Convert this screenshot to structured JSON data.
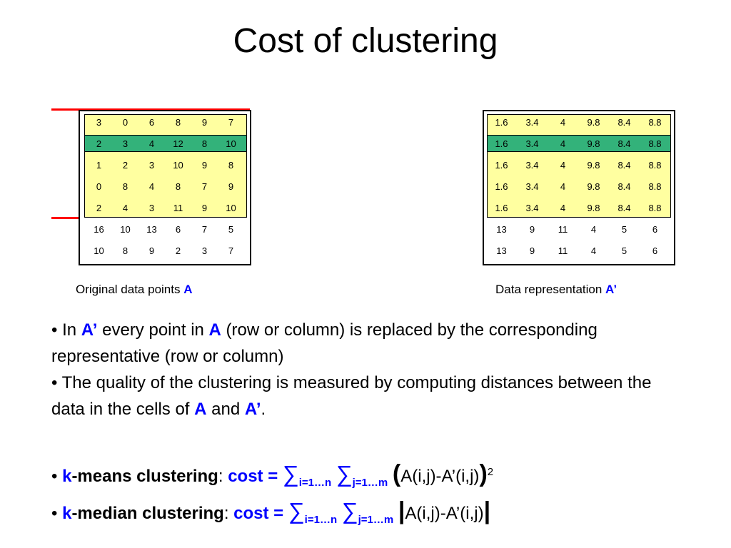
{
  "title": "Cost of clustering",
  "matrix_a": {
    "rows": [
      [
        "3",
        "0",
        "6",
        "8",
        "9",
        "7"
      ],
      [
        "2",
        "3",
        "4",
        "12",
        "8",
        "10"
      ],
      [
        "1",
        "2",
        "3",
        "10",
        "9",
        "8"
      ],
      [
        "0",
        "8",
        "4",
        "8",
        "7",
        "9"
      ],
      [
        "2",
        "4",
        "3",
        "11",
        "9",
        "10"
      ],
      [
        "16",
        "10",
        "13",
        "6",
        "7",
        "5"
      ],
      [
        "10",
        "8",
        "9",
        "2",
        "3",
        "7"
      ]
    ]
  },
  "matrix_a_prime": {
    "rows": [
      [
        "1.6",
        "3.4",
        "4",
        "9.8",
        "8.4",
        "8.8"
      ],
      [
        "1.6",
        "3.4",
        "4",
        "9.8",
        "8.4",
        "8.8"
      ],
      [
        "1.6",
        "3.4",
        "4",
        "9.8",
        "8.4",
        "8.8"
      ],
      [
        "1.6",
        "3.4",
        "4",
        "9.8",
        "8.4",
        "8.8"
      ],
      [
        "1.6",
        "3.4",
        "4",
        "9.8",
        "8.4",
        "8.8"
      ],
      [
        "13",
        "9",
        "11",
        "4",
        "5",
        "6"
      ],
      [
        "13",
        "9",
        "11",
        "4",
        "5",
        "6"
      ]
    ]
  },
  "captions": {
    "left_text": "Original data points ",
    "left_sym": "A",
    "right_text": "Data representation ",
    "right_sym": "A’"
  },
  "bullets": {
    "b1_pre": "• In ",
    "b1_sym1": "A’",
    "b1_mid": " every point in ",
    "b1_sym2": "A",
    "b1_post": " (row or column) is replaced by the corresponding representative (row or column)",
    "b2_pre": "• The quality of the clustering is measured by computing distances between the data in the cells of ",
    "b2_sym1": "A",
    "b2_and": " and ",
    "b2_sym2": "A’",
    "b2_end": "."
  },
  "formulas": {
    "bullet": "• ",
    "k": "k",
    "means_label": "-means clustering",
    "median_label": "-median clustering",
    "colon": ": ",
    "cost": "cost = ",
    "sigma": "∑",
    "sub_i": "i=1…n",
    "sub_j": "j=1…m",
    "open_paren": "(",
    "close_paren": ")",
    "expr": "A(i,j)-A’(i,j)",
    "sq": "2",
    "abs_bar": "|"
  }
}
